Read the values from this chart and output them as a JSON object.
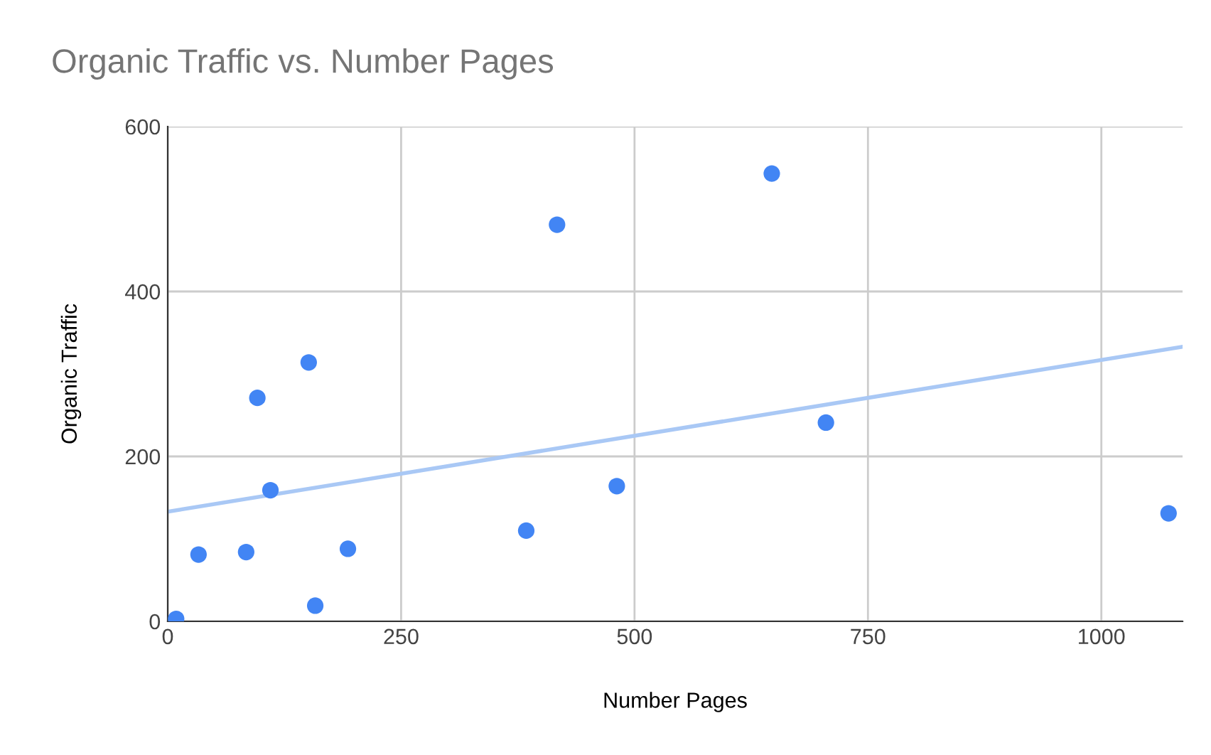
{
  "chart_data": {
    "type": "scatter",
    "title": "Organic Traffic vs. Number Pages",
    "xlabel": "Number Pages",
    "ylabel": "Organic Traffic",
    "xlim": [
      0,
      1087
    ],
    "xticks": [
      0,
      250,
      500,
      750,
      1000
    ],
    "ylim": [
      0,
      600
    ],
    "yticks": [
      0,
      200,
      400,
      600
    ],
    "grid": true,
    "series": [
      {
        "color": "#4285f4",
        "marker": "circle",
        "x": [
          9,
          33,
          84,
          96,
          110,
          151,
          158,
          193,
          384,
          417,
          481,
          647,
          705,
          1072
        ],
        "values": [
          3,
          81,
          84,
          271,
          159,
          314,
          19,
          88,
          110,
          481,
          164,
          543,
          241,
          131
        ]
      },
      {
        "type": "line",
        "marker": "none",
        "color": "#a9c8f5",
        "x": [
          0,
          1087
        ],
        "values": [
          133,
          333
        ]
      }
    ]
  }
}
